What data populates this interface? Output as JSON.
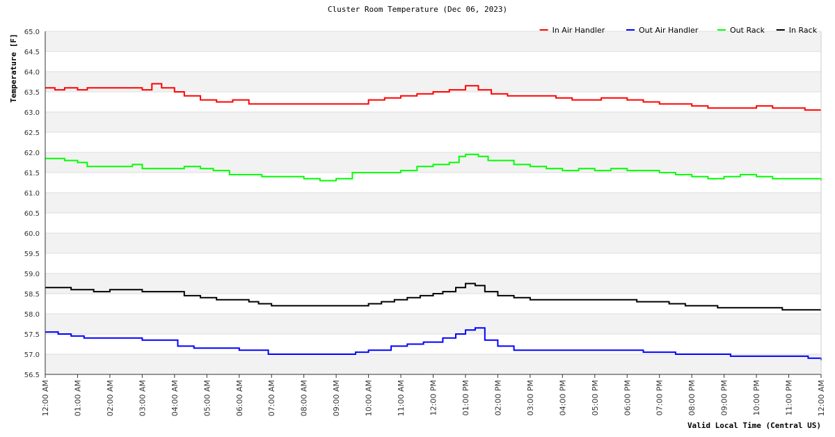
{
  "chart_data": {
    "type": "line",
    "title": "Cluster Room Temperature (Dec 06, 2023)",
    "xlabel": "Valid Local Time (Central US)",
    "ylabel": "Temperature [F]",
    "ylim": [
      56.5,
      65.0
    ],
    "yticks": [
      "65.0",
      "64.5",
      "64.0",
      "63.5",
      "63.0",
      "62.5",
      "62.0",
      "61.5",
      "61.0",
      "60.5",
      "60.0",
      "59.5",
      "59.0",
      "58.5",
      "58.0",
      "57.5",
      "57.0",
      "56.5"
    ],
    "xlim_hours": [
      0,
      24
    ],
    "xticks": [
      "12:00 AM",
      "01:00 AM",
      "02:00 AM",
      "03:00 AM",
      "04:00 AM",
      "05:00 AM",
      "06:00 AM",
      "07:00 AM",
      "08:00 AM",
      "09:00 AM",
      "10:00 AM",
      "11:00 AM",
      "12:00 PM",
      "01:00 PM",
      "02:00 PM",
      "03:00 PM",
      "04:00 PM",
      "05:00 PM",
      "06:00 PM",
      "07:00 PM",
      "08:00 PM",
      "09:00 PM",
      "10:00 PM",
      "11:00 PM",
      "12:00 AM"
    ],
    "grid": "horizontal alternating bands",
    "legend": "top-right",
    "series": [
      {
        "name": "In Air Handler",
        "color": "#ff0000",
        "points": [
          [
            0,
            63.6
          ],
          [
            0.3,
            63.55
          ],
          [
            0.6,
            63.6
          ],
          [
            1.0,
            63.55
          ],
          [
            1.3,
            63.6
          ],
          [
            2.0,
            63.6
          ],
          [
            2.5,
            63.6
          ],
          [
            3.0,
            63.55
          ],
          [
            3.3,
            63.7
          ],
          [
            3.6,
            63.6
          ],
          [
            4.0,
            63.5
          ],
          [
            4.3,
            63.4
          ],
          [
            4.8,
            63.3
          ],
          [
            5.3,
            63.25
          ],
          [
            5.8,
            63.3
          ],
          [
            6.3,
            63.2
          ],
          [
            6.8,
            63.2
          ],
          [
            7.5,
            63.2
          ],
          [
            8.0,
            63.2
          ],
          [
            8.6,
            63.2
          ],
          [
            9.0,
            63.2
          ],
          [
            9.5,
            63.2
          ],
          [
            10.0,
            63.3
          ],
          [
            10.5,
            63.35
          ],
          [
            11.0,
            63.4
          ],
          [
            11.5,
            63.45
          ],
          [
            12.0,
            63.5
          ],
          [
            12.5,
            63.55
          ],
          [
            13.0,
            63.65
          ],
          [
            13.4,
            63.55
          ],
          [
            13.8,
            63.45
          ],
          [
            14.3,
            63.4
          ],
          [
            14.8,
            63.4
          ],
          [
            15.3,
            63.4
          ],
          [
            15.8,
            63.35
          ],
          [
            16.3,
            63.3
          ],
          [
            16.8,
            63.3
          ],
          [
            17.2,
            63.35
          ],
          [
            17.6,
            63.35
          ],
          [
            18.0,
            63.3
          ],
          [
            18.5,
            63.25
          ],
          [
            19.0,
            63.2
          ],
          [
            19.5,
            63.2
          ],
          [
            20.0,
            63.15
          ],
          [
            20.5,
            63.1
          ],
          [
            21.0,
            63.1
          ],
          [
            21.5,
            63.1
          ],
          [
            22.0,
            63.15
          ],
          [
            22.5,
            63.1
          ],
          [
            23.0,
            63.1
          ],
          [
            23.5,
            63.05
          ],
          [
            24.0,
            63.05
          ]
        ]
      },
      {
        "name": "Out Air Handler",
        "color": "#0000ff",
        "points": [
          [
            0,
            57.55
          ],
          [
            0.4,
            57.5
          ],
          [
            0.8,
            57.45
          ],
          [
            1.2,
            57.4
          ],
          [
            2.0,
            57.4
          ],
          [
            2.6,
            57.4
          ],
          [
            3.0,
            57.35
          ],
          [
            3.6,
            57.35
          ],
          [
            4.1,
            57.2
          ],
          [
            4.6,
            57.15
          ],
          [
            5.2,
            57.15
          ],
          [
            5.7,
            57.15
          ],
          [
            6.0,
            57.1
          ],
          [
            6.5,
            57.1
          ],
          [
            6.9,
            57.0
          ],
          [
            7.5,
            57.0
          ],
          [
            8.0,
            57.0
          ],
          [
            8.5,
            57.0
          ],
          [
            9.1,
            57.0
          ],
          [
            9.6,
            57.05
          ],
          [
            10.0,
            57.1
          ],
          [
            10.5,
            57.1
          ],
          [
            10.7,
            57.2
          ],
          [
            11.2,
            57.25
          ],
          [
            11.7,
            57.3
          ],
          [
            12.1,
            57.3
          ],
          [
            12.3,
            57.4
          ],
          [
            12.7,
            57.5
          ],
          [
            13.0,
            57.6
          ],
          [
            13.3,
            57.65
          ],
          [
            13.6,
            57.35
          ],
          [
            14.0,
            57.2
          ],
          [
            14.3,
            57.2
          ],
          [
            14.5,
            57.1
          ],
          [
            15.0,
            57.1
          ],
          [
            16.0,
            57.1
          ],
          [
            17.0,
            57.1
          ],
          [
            18.0,
            57.1
          ],
          [
            18.5,
            57.05
          ],
          [
            19.0,
            57.05
          ],
          [
            19.5,
            57.0
          ],
          [
            20.0,
            57.0
          ],
          [
            20.7,
            57.0
          ],
          [
            21.2,
            56.95
          ],
          [
            21.7,
            56.95
          ],
          [
            22.2,
            56.95
          ],
          [
            22.7,
            56.95
          ],
          [
            23.2,
            56.95
          ],
          [
            23.6,
            56.9
          ],
          [
            24.0,
            56.85
          ]
        ]
      },
      {
        "name": "Out Rack",
        "color": "#00ff00",
        "points": [
          [
            0,
            61.85
          ],
          [
            0.3,
            61.85
          ],
          [
            0.6,
            61.8
          ],
          [
            1.0,
            61.75
          ],
          [
            1.3,
            61.65
          ],
          [
            1.8,
            61.65
          ],
          [
            2.3,
            61.65
          ],
          [
            2.7,
            61.7
          ],
          [
            3.0,
            61.6
          ],
          [
            3.5,
            61.6
          ],
          [
            4.0,
            61.6
          ],
          [
            4.3,
            61.65
          ],
          [
            4.8,
            61.6
          ],
          [
            5.2,
            61.55
          ],
          [
            5.7,
            61.45
          ],
          [
            6.2,
            61.45
          ],
          [
            6.7,
            61.4
          ],
          [
            7.2,
            61.4
          ],
          [
            7.7,
            61.4
          ],
          [
            8.0,
            61.35
          ],
          [
            8.5,
            61.3
          ],
          [
            9.0,
            61.35
          ],
          [
            9.5,
            61.5
          ],
          [
            10.0,
            61.5
          ],
          [
            10.5,
            61.5
          ],
          [
            11.0,
            61.55
          ],
          [
            11.5,
            61.65
          ],
          [
            12.0,
            61.7
          ],
          [
            12.5,
            61.75
          ],
          [
            12.8,
            61.9
          ],
          [
            13.0,
            61.95
          ],
          [
            13.4,
            61.9
          ],
          [
            13.7,
            61.8
          ],
          [
            14.2,
            61.8
          ],
          [
            14.5,
            61.7
          ],
          [
            15.0,
            61.65
          ],
          [
            15.5,
            61.6
          ],
          [
            16.0,
            61.55
          ],
          [
            16.5,
            61.6
          ],
          [
            17.0,
            61.55
          ],
          [
            17.5,
            61.6
          ],
          [
            18.0,
            61.55
          ],
          [
            18.5,
            61.55
          ],
          [
            19.0,
            61.5
          ],
          [
            19.5,
            61.45
          ],
          [
            20.0,
            61.4
          ],
          [
            20.5,
            61.35
          ],
          [
            21.0,
            61.4
          ],
          [
            21.5,
            61.45
          ],
          [
            22.0,
            61.4
          ],
          [
            22.5,
            61.35
          ],
          [
            23.0,
            61.35
          ],
          [
            23.5,
            61.35
          ],
          [
            24.0,
            61.3
          ]
        ]
      },
      {
        "name": "In Rack",
        "color": "#000000",
        "points": [
          [
            0,
            58.65
          ],
          [
            0.4,
            58.65
          ],
          [
            0.8,
            58.6
          ],
          [
            1.5,
            58.55
          ],
          [
            2.0,
            58.6
          ],
          [
            2.5,
            58.6
          ],
          [
            3.0,
            58.55
          ],
          [
            3.5,
            58.55
          ],
          [
            4.1,
            58.55
          ],
          [
            4.3,
            58.45
          ],
          [
            4.8,
            58.4
          ],
          [
            5.3,
            58.35
          ],
          [
            5.8,
            58.35
          ],
          [
            6.3,
            58.3
          ],
          [
            6.6,
            58.25
          ],
          [
            7.0,
            58.2
          ],
          [
            7.5,
            58.2
          ],
          [
            8.0,
            58.2
          ],
          [
            8.5,
            58.2
          ],
          [
            9.0,
            58.2
          ],
          [
            9.5,
            58.2
          ],
          [
            10.0,
            58.25
          ],
          [
            10.4,
            58.3
          ],
          [
            10.8,
            58.35
          ],
          [
            11.2,
            58.4
          ],
          [
            11.6,
            58.45
          ],
          [
            12.0,
            58.5
          ],
          [
            12.3,
            58.55
          ],
          [
            12.7,
            58.65
          ],
          [
            13.0,
            58.75
          ],
          [
            13.3,
            58.7
          ],
          [
            13.6,
            58.55
          ],
          [
            14.0,
            58.45
          ],
          [
            14.5,
            58.4
          ],
          [
            15.0,
            58.35
          ],
          [
            16.0,
            58.35
          ],
          [
            17.0,
            58.35
          ],
          [
            17.8,
            58.35
          ],
          [
            18.3,
            58.3
          ],
          [
            18.8,
            58.3
          ],
          [
            19.3,
            58.25
          ],
          [
            19.8,
            58.2
          ],
          [
            20.3,
            58.2
          ],
          [
            20.8,
            58.15
          ],
          [
            21.3,
            58.15
          ],
          [
            21.8,
            58.15
          ],
          [
            22.3,
            58.15
          ],
          [
            22.8,
            58.1
          ],
          [
            23.3,
            58.1
          ],
          [
            24.0,
            58.1
          ]
        ]
      }
    ]
  }
}
